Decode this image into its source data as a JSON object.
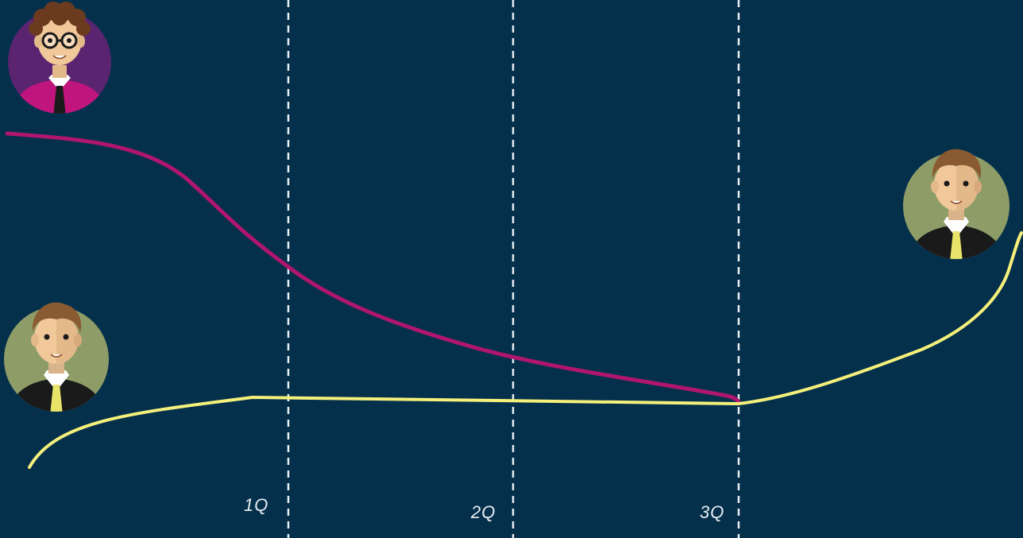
{
  "quarter_labels": [
    "1Q",
    "2Q",
    "3Q"
  ],
  "colors": {
    "background": "#05304c",
    "divider": "#e8eef2",
    "label": "#e8eef2",
    "magenta_line": "#b0166e",
    "yellow_line": "#f4f07a",
    "avatar_purple_bg": "#5a2470",
    "avatar_green_bg": "#8e9c67",
    "shirt_magenta": "#c0157c",
    "tie_yellow": "#e8e46a"
  },
  "avatars": [
    {
      "name": "glasses-person-avatar",
      "style": "glasses"
    },
    {
      "name": "yellow-tie-person-avatar-left",
      "style": "tie"
    },
    {
      "name": "yellow-tie-person-avatar-right",
      "style": "tie"
    }
  ]
}
